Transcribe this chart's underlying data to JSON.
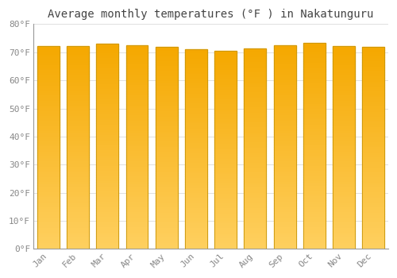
{
  "title": "Average monthly temperatures (°F ) in Nakatunguru",
  "months": [
    "Jan",
    "Feb",
    "Mar",
    "Apr",
    "May",
    "Jun",
    "Jul",
    "Aug",
    "Sep",
    "Oct",
    "Nov",
    "Dec"
  ],
  "values": [
    72.3,
    72.3,
    73.0,
    72.5,
    72.0,
    71.0,
    70.5,
    71.5,
    72.5,
    73.2,
    72.3,
    71.8
  ],
  "bar_color_top": "#F5A800",
  "bar_color_bottom": "#FFD060",
  "bar_edge_color": "#C8960A",
  "background_color": "#FFFFFF",
  "grid_color": "#E0E0E0",
  "ylim": [
    0,
    80
  ],
  "yticks": [
    0,
    10,
    20,
    30,
    40,
    50,
    60,
    70,
    80
  ],
  "ytick_labels": [
    "0°F",
    "10°F",
    "20°F",
    "30°F",
    "40°F",
    "50°F",
    "60°F",
    "70°F",
    "80°F"
  ],
  "title_fontsize": 10,
  "tick_fontsize": 8,
  "tick_color": "#888888",
  "font_family": "monospace"
}
